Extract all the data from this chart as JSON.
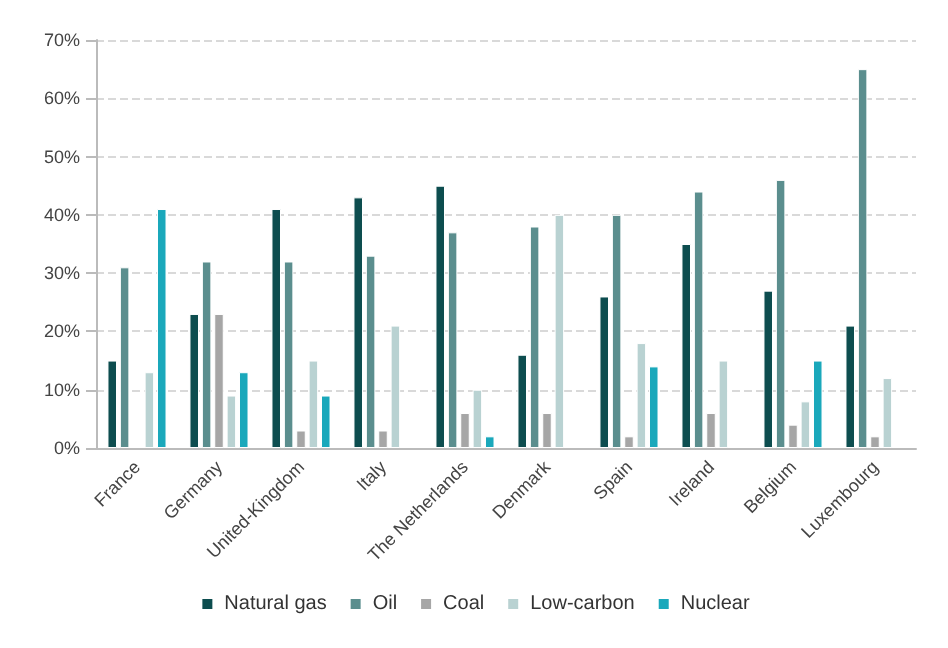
{
  "chart_data": {
    "type": "bar",
    "categories": [
      "France",
      "Germany",
      "United-Kingdom",
      "Italy",
      "The Netherlands",
      "Denmark",
      "Spain",
      "Ireland",
      "Belgium",
      "Luxembourg"
    ],
    "series": [
      {
        "name": "Natural gas",
        "color": "#0d4d4f",
        "values": [
          15,
          23,
          41,
          43,
          45,
          16,
          26,
          35,
          27,
          21
        ]
      },
      {
        "name": "Oil",
        "color": "#5b8e8e",
        "values": [
          31,
          32,
          32,
          33,
          37,
          38,
          40,
          44,
          46,
          65
        ]
      },
      {
        "name": "Coal",
        "color": "#a6a6a6",
        "values": [
          null,
          23,
          3,
          3,
          6,
          6,
          2,
          6,
          4,
          2
        ]
      },
      {
        "name": "Low-carbon",
        "color": "#b9d2d2",
        "values": [
          13,
          9,
          15,
          21,
          10,
          40,
          18,
          15,
          8,
          12
        ]
      },
      {
        "name": "Nuclear",
        "color": "#1aa8bb",
        "values": [
          41,
          13,
          9,
          null,
          2,
          null,
          14,
          null,
          15,
          null
        ]
      }
    ],
    "ylim": [
      0,
      70
    ],
    "yticks": [
      {
        "value": 0,
        "label": "0%"
      },
      {
        "value": 10,
        "label": "10%"
      },
      {
        "value": 20,
        "label": "20%"
      },
      {
        "value": 30,
        "label": "30%"
      },
      {
        "value": 40,
        "label": "40%"
      },
      {
        "value": 50,
        "label": "50%"
      },
      {
        "value": 60,
        "label": "60%"
      },
      {
        "value": 70,
        "label": "70%"
      }
    ],
    "grid": "y",
    "legend": "bottom"
  }
}
